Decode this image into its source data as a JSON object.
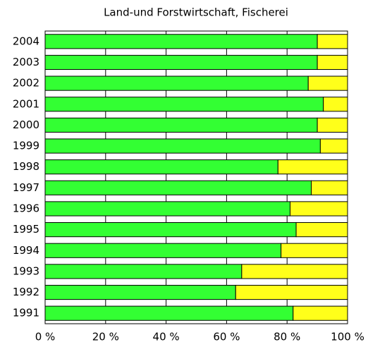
{
  "chart_data": {
    "type": "stacked-barh",
    "title": "Land-und Forstwirtschaft, Fischerei",
    "categories": [
      "2004",
      "2003",
      "2002",
      "2001",
      "2000",
      "1999",
      "1998",
      "1997",
      "1996",
      "1995",
      "1994",
      "1993",
      "1992",
      "1991"
    ],
    "series": [
      {
        "color": "#33ff33",
        "values": [
          90,
          90,
          87,
          92,
          90,
          91,
          77,
          88,
          81,
          83,
          78,
          65,
          63,
          82
        ]
      },
      {
        "color": "#ffff1a",
        "values": [
          10,
          10,
          13,
          8,
          10,
          9,
          23,
          12,
          19,
          17,
          22,
          35,
          37,
          18
        ]
      }
    ],
    "xlim": [
      0,
      100
    ],
    "xticks": [
      {
        "value": 0,
        "label": "0 %"
      },
      {
        "value": 20,
        "label": "20 %"
      },
      {
        "value": 40,
        "label": "40 %"
      },
      {
        "value": 60,
        "label": "60 %"
      },
      {
        "value": 80,
        "label": "80 %"
      },
      {
        "value": 100,
        "label": "100 %"
      }
    ],
    "grid": true
  }
}
